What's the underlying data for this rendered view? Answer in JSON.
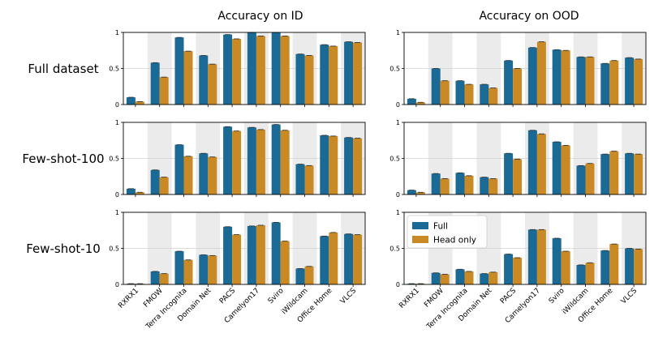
{
  "chart_data": {
    "type": "bar",
    "layout": "grid",
    "column_titles": [
      "Accuracy on ID",
      "Accuracy on OOD"
    ],
    "row_titles": [
      "Full dataset",
      "Few-shot-100",
      "Few-shot-10"
    ],
    "categories": [
      "RXRX1",
      "FMOW",
      "Terra Incognita",
      "Domain Net",
      "PACS",
      "Camelyon17",
      "Sviro",
      "iWildcam",
      "Office Home",
      "VLCS"
    ],
    "ylim": [
      0,
      1
    ],
    "yticks": [
      "0",
      "0.5",
      "1"
    ],
    "colors": {
      "Full": "#1b6a96",
      "Head only": "#c98a25",
      "band": "#ebebeb",
      "grid": "#d0d0d0"
    },
    "legend": {
      "entries": [
        "Full",
        "Head only"
      ],
      "location": "upper-left",
      "panel": "Few-shot-10 / OOD"
    },
    "panels": [
      {
        "row": "Full dataset",
        "col": "Accuracy on ID",
        "series": [
          {
            "name": "Full",
            "values": [
              0.1,
              0.58,
              0.93,
              0.68,
              0.97,
              1.0,
              1.0,
              0.7,
              0.83,
              0.87
            ]
          },
          {
            "name": "Head only",
            "values": [
              0.04,
              0.38,
              0.74,
              0.56,
              0.91,
              0.95,
              0.95,
              0.68,
              0.81,
              0.86
            ]
          }
        ]
      },
      {
        "row": "Full dataset",
        "col": "Accuracy on OOD",
        "series": [
          {
            "name": "Full",
            "values": [
              0.08,
              0.5,
              0.33,
              0.28,
              0.61,
              0.79,
              0.76,
              0.66,
              0.57,
              0.65
            ]
          },
          {
            "name": "Head only",
            "values": [
              0.03,
              0.33,
              0.28,
              0.23,
              0.5,
              0.87,
              0.75,
              0.66,
              0.61,
              0.63
            ]
          }
        ]
      },
      {
        "row": "Few-shot-100",
        "col": "Accuracy on ID",
        "series": [
          {
            "name": "Full",
            "values": [
              0.08,
              0.34,
              0.69,
              0.57,
              0.94,
              0.93,
              0.97,
              0.42,
              0.82,
              0.79
            ]
          },
          {
            "name": "Head only",
            "values": [
              0.03,
              0.24,
              0.53,
              0.52,
              0.88,
              0.9,
              0.89,
              0.4,
              0.81,
              0.78
            ]
          }
        ]
      },
      {
        "row": "Few-shot-100",
        "col": "Accuracy on OOD",
        "series": [
          {
            "name": "Full",
            "values": [
              0.06,
              0.29,
              0.3,
              0.24,
              0.57,
              0.89,
              0.73,
              0.4,
              0.56,
              0.57
            ]
          },
          {
            "name": "Head only",
            "values": [
              0.03,
              0.22,
              0.26,
              0.22,
              0.49,
              0.84,
              0.68,
              0.43,
              0.6,
              0.56
            ]
          }
        ]
      },
      {
        "row": "Few-shot-10",
        "col": "Accuracy on ID",
        "series": [
          {
            "name": "Full",
            "values": [
              0.01,
              0.18,
              0.46,
              0.41,
              0.8,
              0.81,
              0.86,
              0.22,
              0.67,
              0.7
            ]
          },
          {
            "name": "Head only",
            "values": [
              0.01,
              0.15,
              0.34,
              0.4,
              0.69,
              0.82,
              0.6,
              0.25,
              0.72,
              0.69
            ]
          }
        ]
      },
      {
        "row": "Few-shot-10",
        "col": "Accuracy on OOD",
        "series": [
          {
            "name": "Full",
            "values": [
              0.01,
              0.16,
              0.21,
              0.15,
              0.42,
              0.76,
              0.64,
              0.27,
              0.47,
              0.5
            ]
          },
          {
            "name": "Head only",
            "values": [
              0.01,
              0.14,
              0.18,
              0.17,
              0.37,
              0.76,
              0.46,
              0.3,
              0.56,
              0.49
            ]
          }
        ]
      }
    ]
  }
}
